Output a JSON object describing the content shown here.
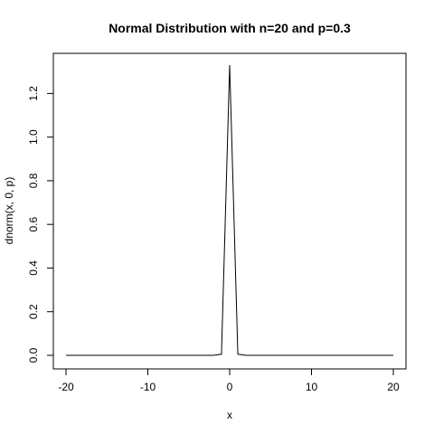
{
  "chart_data": {
    "type": "line",
    "title": "Normal Distribution with n=20 and p=0.3",
    "xlabel": "x",
    "ylabel": "dnorm(x, 0, p)",
    "xlim": [
      -20,
      20
    ],
    "ylim": [
      0,
      1.33
    ],
    "xticks": [
      -20,
      -10,
      0,
      10,
      20
    ],
    "xtick_labels": [
      "-20",
      "-10",
      "0",
      "10",
      "20"
    ],
    "yticks": [
      0,
      0.2,
      0.4,
      0.6,
      0.8,
      1.0,
      1.2
    ],
    "ytick_labels": [
      "0.0",
      "0.2",
      "0.4",
      "0.6",
      "0.8",
      "1.0",
      "1.2"
    ],
    "grid": false,
    "legend": "none",
    "series": [
      {
        "x": [
          -20,
          -19,
          -18,
          -17,
          -16,
          -15,
          -14,
          -13,
          -12,
          -11,
          -10,
          -9,
          -8,
          -7,
          -6,
          -5,
          -4,
          -3,
          -2,
          -1,
          0,
          1,
          2,
          3,
          4,
          5,
          6,
          7,
          8,
          9,
          10,
          11,
          12,
          13,
          14,
          15,
          16,
          17,
          18,
          19,
          20
        ],
        "y": [
          0,
          0,
          0,
          0,
          0,
          0,
          0,
          0,
          0,
          0,
          0,
          0,
          0,
          0,
          0,
          0,
          0,
          0,
          0,
          0.0051,
          1.3298,
          0.0051,
          0,
          0,
          0,
          0,
          0,
          0,
          0,
          0,
          0,
          0,
          0,
          0,
          0,
          0,
          0,
          0,
          0,
          0,
          0
        ]
      }
    ],
    "line_color": "#000000"
  }
}
